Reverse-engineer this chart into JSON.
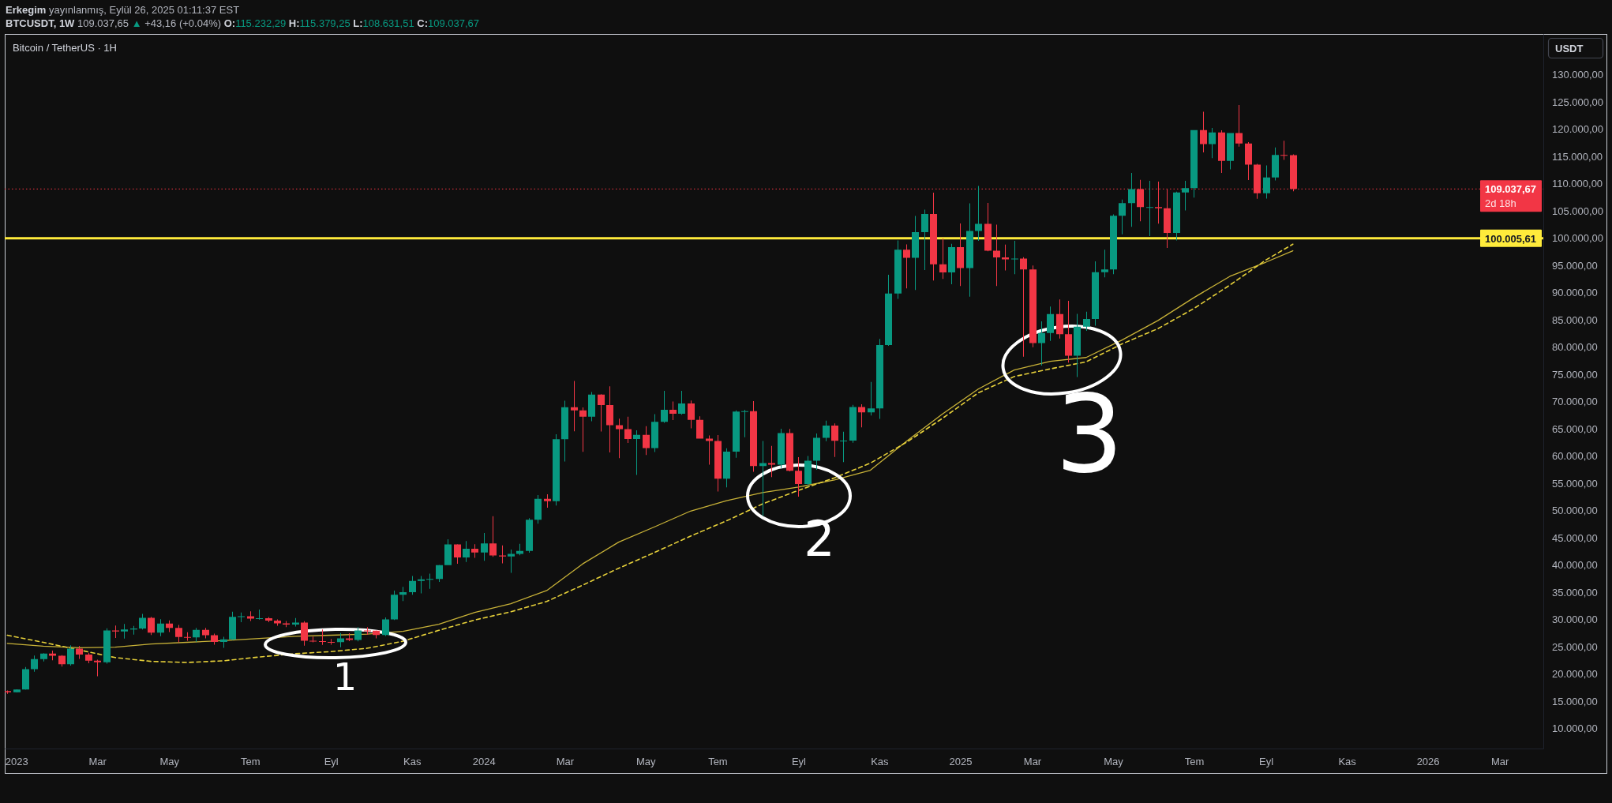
{
  "chart_data": {
    "type": "candlestick",
    "title": "Bitcoin / TetherUS · 1H",
    "ylabel": "USDT",
    "annotations": [
      "Erkegim yayınlanmış, Eylül 26, 2025 01:11:37 EST",
      "BTCUSDT, 1W 109.037,65 ▲ +43,16 (+0.04%) O:115.232,29 H:115.379,25 L:108.631,51 C:109.037,67",
      "2d 18h",
      "1",
      "2",
      "3"
    ],
    "xlim": [
      "2022-12-24",
      "2026-04-05"
    ],
    "ylim": [
      6300,
      137500
    ],
    "xticks": [
      {
        "value": "2023-01-02",
        "label": "2023"
      },
      {
        "value": "2023-03-06",
        "label": "Mar"
      },
      {
        "value": "2023-05-01",
        "label": "May"
      },
      {
        "value": "2023-07-03",
        "label": "Tem"
      },
      {
        "value": "2023-09-04",
        "label": "Eyl"
      },
      {
        "value": "2023-11-06",
        "label": "Kas"
      },
      {
        "value": "2024-01-01",
        "label": "2024"
      },
      {
        "value": "2024-03-04",
        "label": "Mar"
      },
      {
        "value": "2024-05-06",
        "label": "May"
      },
      {
        "value": "2024-07-01",
        "label": "Tem"
      },
      {
        "value": "2024-09-02",
        "label": "Eyl"
      },
      {
        "value": "2024-11-04",
        "label": "Kas"
      },
      {
        "value": "2025-01-06",
        "label": "2025"
      },
      {
        "value": "2025-03-03",
        "label": "Mar"
      },
      {
        "value": "2025-05-05",
        "label": "May"
      },
      {
        "value": "2025-07-07",
        "label": "Tem"
      },
      {
        "value": "2025-09-01",
        "label": "Eyl"
      },
      {
        "value": "2025-11-03",
        "label": "Kas"
      },
      {
        "value": "2026-01-05",
        "label": "2026"
      },
      {
        "value": "2026-03-02",
        "label": "Mar"
      }
    ],
    "yticks": [
      {
        "value": 10000,
        "label": "10.000,00"
      },
      {
        "value": 15000,
        "label": "15.000,00"
      },
      {
        "value": 20000,
        "label": "20.000,00"
      },
      {
        "value": 25000,
        "label": "25.000,00"
      },
      {
        "value": 30000,
        "label": "30.000,00"
      },
      {
        "value": 35000,
        "label": "35.000,00"
      },
      {
        "value": 40000,
        "label": "40.000,00"
      },
      {
        "value": 45000,
        "label": "45.000,00"
      },
      {
        "value": 50000,
        "label": "50.000,00"
      },
      {
        "value": 55000,
        "label": "55.000,00"
      },
      {
        "value": 60000,
        "label": "60.000,00"
      },
      {
        "value": 65000,
        "label": "65.000,00"
      },
      {
        "value": 70000,
        "label": "70.000,00"
      },
      {
        "value": 75000,
        "label": "75.000,00"
      },
      {
        "value": 80000,
        "label": "80.000,00"
      },
      {
        "value": 85000,
        "label": "85.000,00"
      },
      {
        "value": 90000,
        "label": "90.000,00"
      },
      {
        "value": 95000,
        "label": "95.000,00"
      },
      {
        "value": 100000,
        "label": "100.000,00"
      },
      {
        "value": 105000,
        "label": "105.000,00"
      },
      {
        "value": 110000,
        "label": "110.000,00"
      },
      {
        "value": 115000,
        "label": "115.000,00"
      },
      {
        "value": 120000,
        "label": "120.000,00"
      },
      {
        "value": 125000,
        "label": "125.000,00"
      },
      {
        "value": 130000,
        "label": "130.000,00"
      }
    ],
    "x": [
      "2022-12-26",
      "2023-01-02",
      "2023-01-09",
      "2023-01-16",
      "2023-01-23",
      "2023-01-30",
      "2023-02-06",
      "2023-02-13",
      "2023-02-20",
      "2023-02-27",
      "2023-03-06",
      "2023-03-13",
      "2023-03-20",
      "2023-03-27",
      "2023-04-03",
      "2023-04-10",
      "2023-04-17",
      "2023-04-24",
      "2023-05-01",
      "2023-05-08",
      "2023-05-15",
      "2023-05-22",
      "2023-05-29",
      "2023-06-05",
      "2023-06-12",
      "2023-06-19",
      "2023-06-26",
      "2023-07-03",
      "2023-07-10",
      "2023-07-17",
      "2023-07-24",
      "2023-07-31",
      "2023-08-07",
      "2023-08-14",
      "2023-08-21",
      "2023-08-28",
      "2023-09-04",
      "2023-09-11",
      "2023-09-18",
      "2023-09-25",
      "2023-10-02",
      "2023-10-09",
      "2023-10-16",
      "2023-10-23",
      "2023-10-30",
      "2023-11-06",
      "2023-11-13",
      "2023-11-20",
      "2023-11-27",
      "2023-12-04",
      "2023-12-11",
      "2023-12-18",
      "2023-12-25",
      "2024-01-01",
      "2024-01-08",
      "2024-01-15",
      "2024-01-22",
      "2024-01-29",
      "2024-02-05",
      "2024-02-12",
      "2024-02-19",
      "2024-02-26",
      "2024-03-04",
      "2024-03-11",
      "2024-03-18",
      "2024-03-25",
      "2024-04-01",
      "2024-04-08",
      "2024-04-15",
      "2024-04-22",
      "2024-04-29",
      "2024-05-06",
      "2024-05-13",
      "2024-05-20",
      "2024-05-27",
      "2024-06-03",
      "2024-06-10",
      "2024-06-17",
      "2024-06-24",
      "2024-07-01",
      "2024-07-08",
      "2024-07-15",
      "2024-07-22",
      "2024-07-29",
      "2024-08-05",
      "2024-08-12",
      "2024-08-19",
      "2024-08-26",
      "2024-09-02",
      "2024-09-09",
      "2024-09-16",
      "2024-09-23",
      "2024-09-30",
      "2024-10-07",
      "2024-10-14",
      "2024-10-21",
      "2024-10-28",
      "2024-11-04",
      "2024-11-11",
      "2024-11-18",
      "2024-11-25",
      "2024-12-02",
      "2024-12-09",
      "2024-12-16",
      "2024-12-23",
      "2024-12-30",
      "2025-01-06",
      "2025-01-13",
      "2025-01-20",
      "2025-01-27",
      "2025-02-03",
      "2025-02-10",
      "2025-02-17",
      "2025-02-24",
      "2025-03-03",
      "2025-03-10",
      "2025-03-17",
      "2025-03-24",
      "2025-03-31",
      "2025-04-07",
      "2025-04-14",
      "2025-04-21",
      "2025-04-28",
      "2025-05-05",
      "2025-05-12",
      "2025-05-19",
      "2025-05-26",
      "2025-06-02",
      "2025-06-09",
      "2025-06-16",
      "2025-06-23",
      "2025-06-30",
      "2025-07-07",
      "2025-07-14",
      "2025-07-21",
      "2025-07-28",
      "2025-08-04",
      "2025-08-11",
      "2025-08-18",
      "2025-08-25",
      "2025-09-01",
      "2025-09-08",
      "2025-09-15",
      "2025-09-22"
    ],
    "ohlc": [
      [
        16840,
        16970,
        16330,
        16620
      ],
      [
        16620,
        17180,
        16600,
        17130
      ],
      [
        17130,
        21260,
        17100,
        20870
      ],
      [
        20870,
        23370,
        20400,
        22710
      ],
      [
        22710,
        23820,
        22290,
        23730
      ],
      [
        23730,
        24260,
        22500,
        23320
      ],
      [
        23320,
        23460,
        21350,
        21770
      ],
      [
        21770,
        25250,
        21530,
        24630
      ],
      [
        24630,
        25130,
        22760,
        23550
      ],
      [
        23550,
        23880,
        21970,
        22430
      ],
      [
        22430,
        22600,
        19550,
        22140
      ],
      [
        22140,
        28390,
        21900,
        27980
      ],
      [
        27980,
        28870,
        26600,
        27800
      ],
      [
        27800,
        29180,
        26500,
        28170
      ],
      [
        28170,
        28800,
        27200,
        28330
      ],
      [
        28330,
        31000,
        28170,
        30300
      ],
      [
        30300,
        30490,
        27130,
        27590
      ],
      [
        27590,
        30040,
        26940,
        29230
      ],
      [
        29230,
        29820,
        27680,
        28430
      ],
      [
        28430,
        29000,
        25810,
        26780
      ],
      [
        26780,
        27660,
        26100,
        26720
      ],
      [
        26720,
        28450,
        25870,
        28080
      ],
      [
        28080,
        28450,
        26510,
        27110
      ],
      [
        27110,
        27400,
        25350,
        25860
      ],
      [
        25860,
        26800,
        24800,
        26340
      ],
      [
        26340,
        31430,
        26250,
        30470
      ],
      [
        30470,
        31280,
        29500,
        30590
      ],
      [
        30590,
        31500,
        29700,
        30160
      ],
      [
        30160,
        31800,
        29950,
        30230
      ],
      [
        30230,
        30430,
        29500,
        29790
      ],
      [
        29790,
        29990,
        28860,
        29280
      ],
      [
        29280,
        29720,
        28580,
        29050
      ],
      [
        29050,
        30240,
        28700,
        29410
      ],
      [
        29410,
        29690,
        25170,
        26100
      ],
      [
        26100,
        26840,
        25800,
        26010
      ],
      [
        26010,
        28140,
        25330,
        25870
      ],
      [
        25870,
        26430,
        25370,
        25840
      ],
      [
        25840,
        27490,
        24900,
        26530
      ],
      [
        26530,
        27480,
        26000,
        26250
      ],
      [
        26250,
        28580,
        25990,
        27990
      ],
      [
        27990,
        28600,
        27160,
        27920
      ],
      [
        27920,
        27990,
        26530,
        27150
      ],
      [
        27150,
        30380,
        26970,
        29990
      ],
      [
        29990,
        35280,
        29880,
        34530
      ],
      [
        34530,
        35980,
        33390,
        35010
      ],
      [
        35010,
        37970,
        34530,
        37060
      ],
      [
        37060,
        37980,
        34800,
        37360
      ],
      [
        37360,
        38420,
        35630,
        37450
      ],
      [
        37450,
        40000,
        36880,
        39970
      ],
      [
        39970,
        44700,
        39970,
        43790
      ],
      [
        43790,
        43800,
        40220,
        41370
      ],
      [
        41370,
        44400,
        40540,
        42990
      ],
      [
        42990,
        43810,
        41300,
        42280
      ],
      [
        42280,
        45880,
        40750,
        43940
      ],
      [
        43940,
        48970,
        41500,
        41730
      ],
      [
        41730,
        43580,
        40280,
        41580
      ],
      [
        41580,
        42840,
        38560,
        42030
      ],
      [
        42030,
        43880,
        41800,
        42580
      ],
      [
        42580,
        48590,
        42260,
        48300
      ],
      [
        48300,
        52820,
        47590,
        52140
      ],
      [
        52140,
        52990,
        50520,
        51730
      ],
      [
        51730,
        64000,
        50900,
        63110
      ],
      [
        63110,
        70170,
        59000,
        68960
      ],
      [
        68960,
        73780,
        64530,
        68390
      ],
      [
        68390,
        68920,
        60780,
        67210
      ],
      [
        67210,
        71770,
        66400,
        71280
      ],
      [
        71280,
        71340,
        64490,
        69360
      ],
      [
        69360,
        72800,
        60660,
        65660
      ],
      [
        65660,
        66870,
        59600,
        64940
      ],
      [
        64940,
        67230,
        62390,
        63120
      ],
      [
        63120,
        64730,
        56550,
        63890
      ],
      [
        63890,
        65500,
        60190,
        61480
      ],
      [
        61480,
        67700,
        60750,
        66270
      ],
      [
        66270,
        71980,
        66100,
        68510
      ],
      [
        68510,
        70000,
        66600,
        67760
      ],
      [
        67760,
        71990,
        67570,
        69650
      ],
      [
        69650,
        70200,
        65080,
        66640
      ],
      [
        66640,
        67300,
        63200,
        63210
      ],
      [
        63210,
        63780,
        58400,
        62770
      ],
      [
        62770,
        63860,
        53490,
        55860
      ],
      [
        55860,
        61420,
        54260,
        60800
      ],
      [
        60800,
        68370,
        59700,
        68160
      ],
      [
        68160,
        68480,
        63450,
        68250
      ],
      [
        68250,
        70080,
        57120,
        58160
      ],
      [
        58160,
        62750,
        49000,
        58710
      ],
      [
        58710,
        61860,
        56120,
        58430
      ],
      [
        58430,
        65000,
        57800,
        64220
      ],
      [
        64220,
        64990,
        57200,
        57300
      ],
      [
        57300,
        59810,
        52550,
        54870
      ],
      [
        54870,
        60000,
        54580,
        59130
      ],
      [
        59130,
        64130,
        57490,
        63350
      ],
      [
        63350,
        66500,
        62740,
        65600
      ],
      [
        65600,
        66000,
        59830,
        62820
      ],
      [
        62820,
        64480,
        58900,
        62850
      ],
      [
        62850,
        69400,
        62450,
        69000
      ],
      [
        69000,
        69520,
        65260,
        68020
      ],
      [
        68020,
        73620,
        67450,
        68740
      ],
      [
        68740,
        81500,
        66840,
        80370
      ],
      [
        80370,
        93270,
        80220,
        89850
      ],
      [
        89850,
        99590,
        88850,
        97900
      ],
      [
        97900,
        98870,
        90790,
        96410
      ],
      [
        96410,
        104090,
        90500,
        101130
      ],
      [
        101130,
        105250,
        94150,
        104460
      ],
      [
        104460,
        108350,
        92230,
        95190
      ],
      [
        95190,
        99960,
        92520,
        93720
      ],
      [
        93720,
        98980,
        91530,
        98360
      ],
      [
        98360,
        102720,
        91200,
        94520
      ],
      [
        94520,
        106400,
        89260,
        101330
      ],
      [
        101330,
        109590,
        99520,
        102620
      ],
      [
        102620,
        106460,
        97600,
        97700
      ],
      [
        97700,
        102500,
        91230,
        96460
      ],
      [
        96460,
        98830,
        94090,
        96120
      ],
      [
        96120,
        99500,
        93390,
        96250
      ],
      [
        96250,
        96500,
        78260,
        94270
      ],
      [
        94270,
        95000,
        80000,
        80730
      ],
      [
        80730,
        84720,
        76610,
        82580
      ],
      [
        82580,
        87450,
        81130,
        86080
      ],
      [
        86080,
        88770,
        81570,
        82390
      ],
      [
        82390,
        88500,
        77150,
        78430
      ],
      [
        78430,
        86100,
        74510,
        83760
      ],
      [
        83760,
        86500,
        83000,
        85180
      ],
      [
        85180,
        95760,
        83950,
        93750
      ],
      [
        93750,
        97900,
        92800,
        94280
      ],
      [
        94280,
        104360,
        93380,
        104120
      ],
      [
        104120,
        107110,
        100720,
        106450
      ],
      [
        106450,
        111980,
        102100,
        109000
      ],
      [
        109000,
        110720,
        103100,
        105700
      ],
      [
        105700,
        110530,
        100370,
        105730
      ],
      [
        105730,
        110400,
        102660,
        105500
      ],
      [
        105500,
        108950,
        98200,
        100960
      ],
      [
        100960,
        108530,
        99580,
        108380
      ],
      [
        108380,
        110530,
        105100,
        109200
      ],
      [
        109200,
        119860,
        107440,
        119840
      ],
      [
        119840,
        123220,
        115740,
        117270
      ],
      [
        117270,
        120250,
        114720,
        119420
      ],
      [
        119420,
        119800,
        112000,
        114200
      ],
      [
        114200,
        119310,
        112650,
        119290
      ],
      [
        119290,
        124470,
        116800,
        117400
      ],
      [
        117400,
        117640,
        110680,
        113490
      ],
      [
        113490,
        113640,
        107250,
        108250
      ],
      [
        108250,
        113380,
        107270,
        111140
      ],
      [
        111140,
        116670,
        110620,
        115270
      ],
      [
        115270,
        117900,
        114380,
        115232.29
      ],
      [
        115232.29,
        115379.25,
        108631.51,
        109037.67
      ]
    ],
    "colors": [
      "#f23645",
      "#089981",
      "#089981",
      "#089981",
      "#089981",
      "#f23645",
      "#f23645",
      "#089981",
      "#f23645",
      "#f23645",
      "#f23645",
      "#089981",
      "#f23645",
      "#089981",
      "#089981",
      "#089981",
      "#f23645",
      "#089981",
      "#f23645",
      "#f23645",
      "#f23645",
      "#089981",
      "#f23645",
      "#f23645",
      "#089981",
      "#089981",
      "#089981",
      "#f23645",
      "#089981",
      "#f23645",
      "#f23645",
      "#f23645",
      "#089981",
      "#f23645",
      "#f23645",
      "#f23645",
      "#f23645",
      "#089981",
      "#f23645",
      "#089981",
      "#f23645",
      "#f23645",
      "#089981",
      "#089981",
      "#089981",
      "#089981",
      "#089981",
      "#089981",
      "#089981",
      "#089981",
      "#f23645",
      "#089981",
      "#f23645",
      "#089981",
      "#f23645",
      "#f23645",
      "#089981",
      "#089981",
      "#089981",
      "#089981",
      "#f23645",
      "#089981",
      "#089981",
      "#f23645",
      "#f23645",
      "#089981",
      "#f23645",
      "#f23645",
      "#f23645",
      "#f23645",
      "#089981",
      "#f23645",
      "#089981",
      "#089981",
      "#f23645",
      "#089981",
      "#f23645",
      "#f23645",
      "#f23645",
      "#f23645",
      "#089981",
      "#089981",
      "#089981",
      "#f23645",
      "#089981",
      "#f23645",
      "#089981",
      "#f23645",
      "#f23645",
      "#089981",
      "#089981",
      "#089981",
      "#f23645",
      "#089981",
      "#089981",
      "#f23645",
      "#089981",
      "#089981",
      "#089981",
      "#089981",
      "#f23645",
      "#089981",
      "#089981",
      "#f23645",
      "#f23645",
      "#089981",
      "#f23645",
      "#089981",
      "#089981",
      "#f23645",
      "#f23645",
      "#f23645",
      "#089981",
      "#f23645",
      "#f23645",
      "#089981",
      "#089981",
      "#f23645",
      "#f23645",
      "#089981",
      "#089981",
      "#089981",
      "#089981",
      "#089981",
      "#089981",
      "#089981",
      "#f23645",
      "#089981",
      "#f23645",
      "#f23645",
      "#089981",
      "#089981",
      "#089981",
      "#f23645",
      "#089981",
      "#f23645",
      "#089981",
      "#f23645",
      "#f23645",
      "#f23645",
      "#089981",
      "#089981",
      "#f23645",
      "#f23645"
    ],
    "series": [
      {
        "type": "line",
        "color": "#c8b238",
        "line_style": "solid",
        "x": [
          "2022-12-26",
          "2023-01-23",
          "2023-02-20",
          "2023-03-20",
          "2023-04-17",
          "2023-05-15",
          "2023-06-12",
          "2023-07-10",
          "2023-08-07",
          "2023-09-04",
          "2023-10-02",
          "2023-10-30",
          "2023-11-27",
          "2023-12-25",
          "2024-01-22",
          "2024-02-19",
          "2024-03-18",
          "2024-04-15",
          "2024-05-13",
          "2024-06-10",
          "2024-07-08",
          "2024-08-05",
          "2024-09-02",
          "2024-09-30",
          "2024-10-28",
          "2024-11-25",
          "2024-12-23",
          "2025-01-20",
          "2025-02-17",
          "2025-03-17",
          "2025-04-14",
          "2025-05-12",
          "2025-06-09",
          "2025-07-07",
          "2025-08-04",
          "2025-09-01",
          "2025-09-22"
        ],
        "values": [
          25600,
          25100,
          24800,
          24900,
          25500,
          25800,
          26100,
          26500,
          26900,
          27100,
          27300,
          27800,
          29100,
          31300,
          32900,
          35300,
          40200,
          44200,
          47000,
          49900,
          51800,
          53300,
          54300,
          55600,
          57400,
          62700,
          67700,
          72300,
          75800,
          77400,
          78100,
          81300,
          84900,
          89100,
          93000,
          95600,
          97700
        ]
      },
      {
        "type": "line",
        "color": "#e6d03a",
        "line_style": "dashed",
        "x": [
          "2022-12-26",
          "2023-01-23",
          "2023-02-20",
          "2023-03-20",
          "2023-04-17",
          "2023-05-15",
          "2023-06-12",
          "2023-07-10",
          "2023-08-07",
          "2023-09-04",
          "2023-10-02",
          "2023-10-30",
          "2023-11-27",
          "2023-12-25",
          "2024-01-22",
          "2024-02-19",
          "2024-03-18",
          "2024-04-15",
          "2024-05-13",
          "2024-06-10",
          "2024-07-08",
          "2024-08-05",
          "2024-09-02",
          "2024-09-30",
          "2024-10-28",
          "2024-11-25",
          "2024-12-23",
          "2025-01-20",
          "2025-02-17",
          "2025-03-17",
          "2025-04-14",
          "2025-05-12",
          "2025-06-09",
          "2025-07-07",
          "2025-08-04",
          "2025-09-01",
          "2025-09-22"
        ],
        "values": [
          27100,
          25800,
          24400,
          23000,
          22300,
          22100,
          22400,
          23100,
          23700,
          24100,
          24700,
          26000,
          28000,
          29900,
          31400,
          33300,
          36300,
          39400,
          42300,
          45300,
          48100,
          51200,
          53700,
          56000,
          58700,
          62500,
          66900,
          71600,
          74600,
          76000,
          77300,
          80600,
          83400,
          87100,
          91400,
          96000,
          98900
        ]
      }
    ],
    "ref_lines": [
      {
        "axis": "y",
        "value": 100005.61,
        "label": "100.005,61",
        "color": "#ffeb3b",
        "line_style": "solid"
      },
      {
        "axis": "y",
        "value": 109037.67,
        "label": "109.037,67",
        "color": "#f23645",
        "line_style": "dotted"
      }
    ]
  }
}
